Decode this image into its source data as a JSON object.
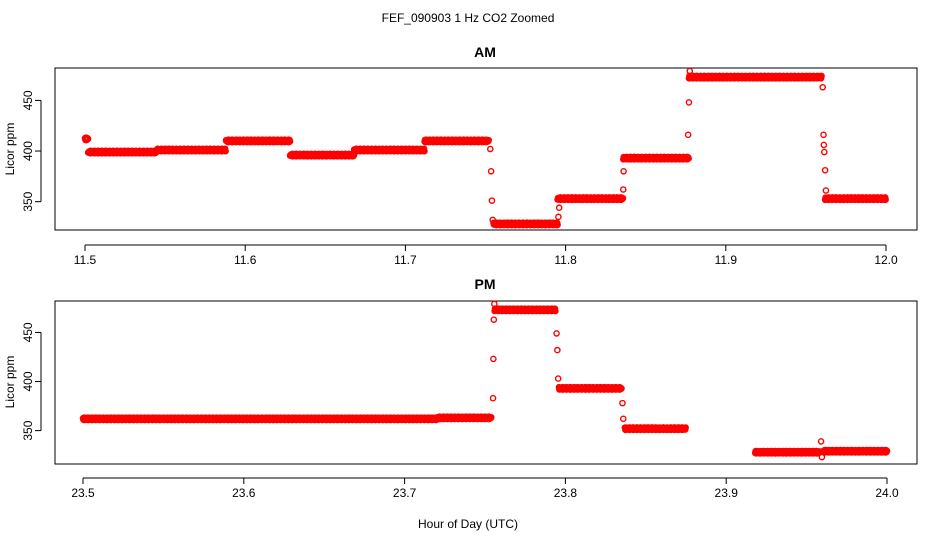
{
  "figure": {
    "title": "FEF_090903  1 Hz CO2 Zoomed",
    "xlabel": "Hour of Day (UTC)"
  },
  "chart_data": [
    {
      "type": "scatter",
      "title": "AM",
      "xlabel": "Hour of Day (UTC)",
      "ylabel": "Licor ppm",
      "xlim": [
        11.5,
        12.0
      ],
      "ylim": [
        322,
        482
      ],
      "xticks": [
        "11.5",
        "11.6",
        "11.7",
        "11.8",
        "11.9",
        "12.0"
      ],
      "yticks": [
        "350",
        "400",
        "450"
      ],
      "grid": false,
      "marker": "open-circle",
      "color": "#ff0000",
      "segments": [
        {
          "x": [
            11.5,
            11.502
          ],
          "y": 412
        },
        {
          "x": [
            11.502,
            11.545
          ],
          "y": 399
        },
        {
          "x": [
            11.545,
            11.588
          ],
          "y": 401
        },
        {
          "x": [
            11.588,
            11.628
          ],
          "y": 410
        },
        {
          "x": [
            11.628,
            11.668
          ],
          "y": 396
        },
        {
          "x": [
            11.668,
            11.712
          ],
          "y": 401
        },
        {
          "x": [
            11.712,
            11.752
          ],
          "y": 410
        },
        {
          "x": [
            11.755,
            11.795
          ],
          "y": 328
        },
        {
          "x": [
            11.795,
            11.836
          ],
          "y": 353
        },
        {
          "x": [
            11.836,
            11.877
          ],
          "y": 393
        },
        {
          "x": [
            11.877,
            11.96
          ],
          "y": 473
        },
        {
          "x": [
            11.962,
            12.0
          ],
          "y": 353
        }
      ],
      "transition_points": [
        {
          "x": 11.753,
          "y": 402
        },
        {
          "x": 11.7535,
          "y": 380
        },
        {
          "x": 11.754,
          "y": 351
        },
        {
          "x": 11.7545,
          "y": 332
        },
        {
          "x": 11.7955,
          "y": 335
        },
        {
          "x": 11.796,
          "y": 344
        },
        {
          "x": 11.836,
          "y": 362
        },
        {
          "x": 11.8362,
          "y": 380
        },
        {
          "x": 11.8765,
          "y": 416
        },
        {
          "x": 11.877,
          "y": 448
        },
        {
          "x": 11.8775,
          "y": 479
        },
        {
          "x": 11.9605,
          "y": 463
        },
        {
          "x": 11.961,
          "y": 416
        },
        {
          "x": 11.9612,
          "y": 406
        },
        {
          "x": 11.9615,
          "y": 399
        },
        {
          "x": 11.962,
          "y": 381
        },
        {
          "x": 11.9625,
          "y": 361
        }
      ]
    },
    {
      "type": "scatter",
      "title": "PM",
      "xlabel": "Hour of Day (UTC)",
      "ylabel": "Licor ppm",
      "xlim": [
        23.5,
        24.0
      ],
      "ylim": [
        316,
        482
      ],
      "xticks": [
        "23.5",
        "23.6",
        "23.7",
        "23.8",
        "23.9",
        "24.0"
      ],
      "yticks": [
        "350",
        "400",
        "450"
      ],
      "grid": false,
      "marker": "open-circle",
      "color": "#ff0000",
      "segments": [
        {
          "x": [
            23.5,
            23.72
          ],
          "y": 362
        },
        {
          "x": [
            23.72,
            23.754
          ],
          "y": 363
        },
        {
          "x": [
            23.756,
            23.794
          ],
          "y": 473
        },
        {
          "x": [
            23.796,
            23.835
          ],
          "y": 393
        },
        {
          "x": [
            23.837,
            23.875
          ],
          "y": 352
        },
        {
          "x": [
            23.918,
            23.958
          ],
          "y": 328
        },
        {
          "x": [
            23.96,
            24.0
          ],
          "y": 329
        }
      ],
      "transition_points": [
        {
          "x": 23.755,
          "y": 383
        },
        {
          "x": 23.7552,
          "y": 423
        },
        {
          "x": 23.7555,
          "y": 463
        },
        {
          "x": 23.7558,
          "y": 479
        },
        {
          "x": 23.7945,
          "y": 449
        },
        {
          "x": 23.795,
          "y": 432
        },
        {
          "x": 23.7955,
          "y": 403
        },
        {
          "x": 23.8355,
          "y": 378
        },
        {
          "x": 23.836,
          "y": 362
        },
        {
          "x": 23.959,
          "y": 339
        },
        {
          "x": 23.9595,
          "y": 323
        }
      ]
    }
  ]
}
